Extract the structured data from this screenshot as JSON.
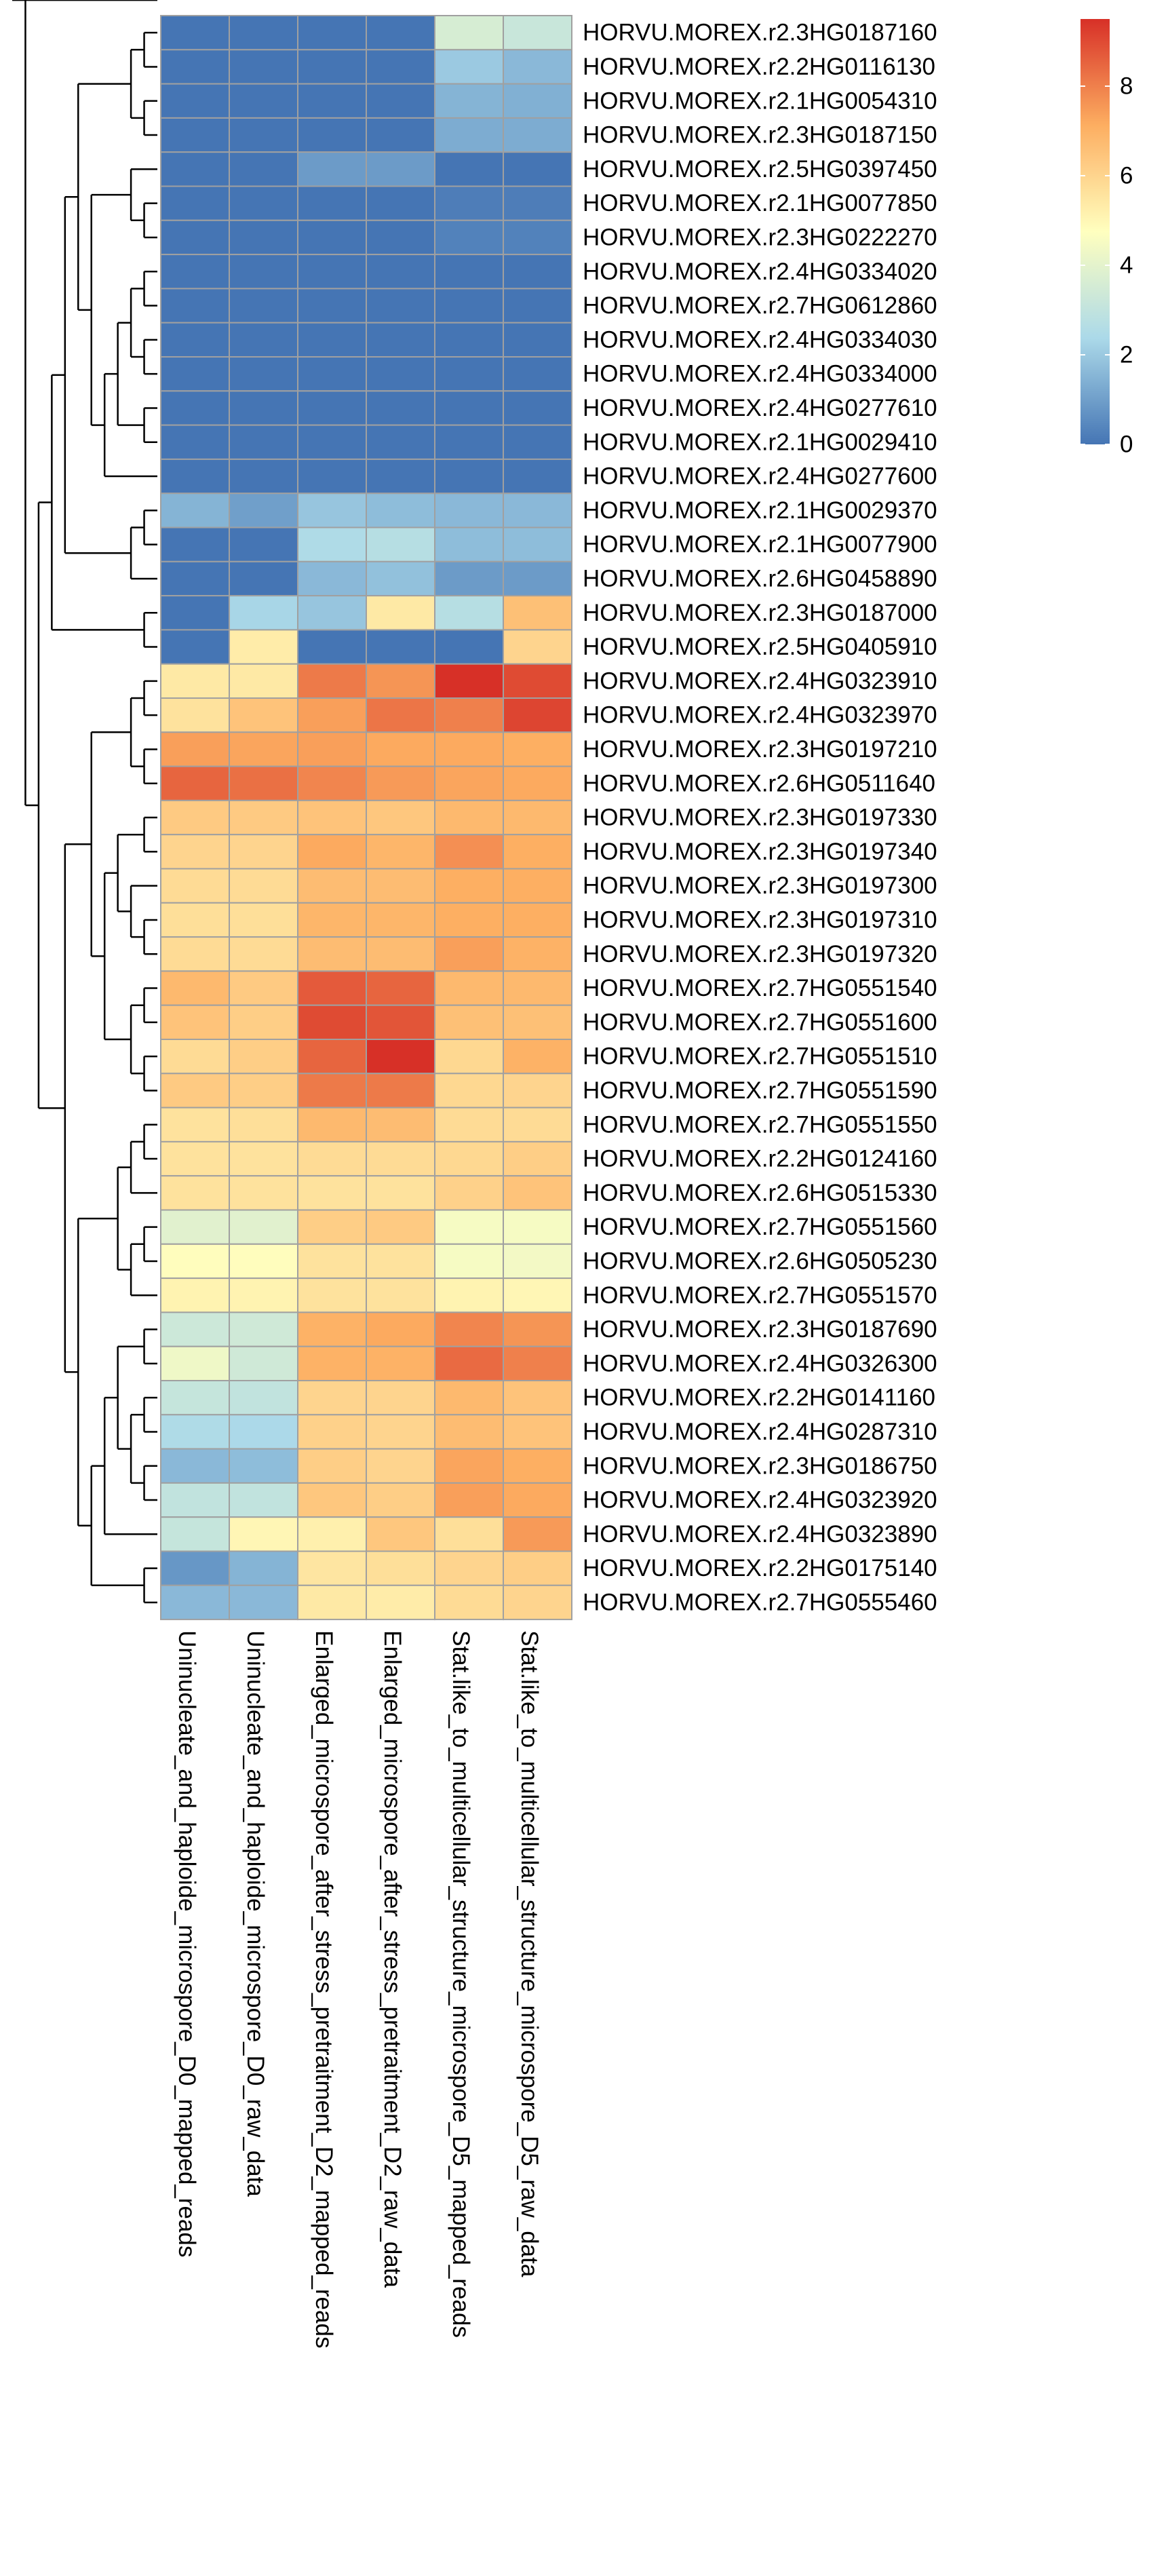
{
  "chart_data": {
    "type": "heatmap",
    "columns": [
      "Uninucleate_and_haploide_microspore_D0_mapped_reads",
      "Uninucleate_and_haploide_microspore_D0_raw_data",
      "Enlarged_microspore_after_stress_pretraitment_D2_mapped_reads",
      "Enlarged_microspore_after_stress_pretraitment_D2_raw_data",
      "Stat.like_to_multicellular_structure_microspore_D5_mapped_reads",
      "Stat.like_to_multicellular_structure_microspore_D5_raw_data"
    ],
    "rows": [
      "HORVU.MOREX.r2.3HG0187160",
      "HORVU.MOREX.r2.2HG0116130",
      "HORVU.MOREX.r2.1HG0054310",
      "HORVU.MOREX.r2.3HG0187150",
      "HORVU.MOREX.r2.5HG0397450",
      "HORVU.MOREX.r2.1HG0077850",
      "HORVU.MOREX.r2.3HG0222270",
      "HORVU.MOREX.r2.4HG0334020",
      "HORVU.MOREX.r2.7HG0612860",
      "HORVU.MOREX.r2.4HG0334030",
      "HORVU.MOREX.r2.4HG0334000",
      "HORVU.MOREX.r2.4HG0277610",
      "HORVU.MOREX.r2.1HG0029410",
      "HORVU.MOREX.r2.4HG0277600",
      "HORVU.MOREX.r2.1HG0029370",
      "HORVU.MOREX.r2.1HG0077900",
      "HORVU.MOREX.r2.6HG0458890",
      "HORVU.MOREX.r2.3HG0187000",
      "HORVU.MOREX.r2.5HG0405910",
      "HORVU.MOREX.r2.4HG0323910",
      "HORVU.MOREX.r2.4HG0323970",
      "HORVU.MOREX.r2.3HG0197210",
      "HORVU.MOREX.r2.6HG0511640",
      "HORVU.MOREX.r2.3HG0197330",
      "HORVU.MOREX.r2.3HG0197340",
      "HORVU.MOREX.r2.3HG0197300",
      "HORVU.MOREX.r2.3HG0197310",
      "HORVU.MOREX.r2.3HG0197320",
      "HORVU.MOREX.r2.7HG0551540",
      "HORVU.MOREX.r2.7HG0551600",
      "HORVU.MOREX.r2.7HG0551510",
      "HORVU.MOREX.r2.7HG0551590",
      "HORVU.MOREX.r2.7HG0551550",
      "HORVU.MOREX.r2.2HG0124160",
      "HORVU.MOREX.r2.6HG0515330",
      "HORVU.MOREX.r2.7HG0551560",
      "HORVU.MOREX.r2.6HG0505230",
      "HORVU.MOREX.r2.7HG0551570",
      "HORVU.MOREX.r2.3HG0187690",
      "HORVU.MOREX.r2.4HG0326300",
      "HORVU.MOREX.r2.2HG0141160",
      "HORVU.MOREX.r2.4HG0287310",
      "HORVU.MOREX.r2.3HG0186750",
      "HORVU.MOREX.r2.4HG0323920",
      "HORVU.MOREX.r2.4HG0323890",
      "HORVU.MOREX.r2.2HG0175140",
      "HORVU.MOREX.r2.7HG0555460"
    ],
    "values": [
      [
        0,
        0,
        0,
        0,
        3.6,
        3.2
      ],
      [
        0,
        0,
        0,
        0,
        2.0,
        1.6
      ],
      [
        0,
        0,
        0,
        0,
        1.5,
        1.4
      ],
      [
        0,
        0,
        0,
        0,
        1.3,
        1.3
      ],
      [
        0,
        0,
        0.9,
        0.9,
        0,
        0
      ],
      [
        0,
        0,
        0,
        0,
        0.2,
        0.2
      ],
      [
        0,
        0,
        0,
        0,
        0.3,
        0.3
      ],
      [
        0,
        0,
        0,
        0,
        0,
        0
      ],
      [
        0,
        0,
        0,
        0,
        0,
        0
      ],
      [
        0,
        0,
        0,
        0,
        0,
        0
      ],
      [
        0,
        0,
        0,
        0,
        0,
        0
      ],
      [
        0,
        0,
        0,
        0,
        0,
        0
      ],
      [
        0,
        0,
        0,
        0,
        0,
        0
      ],
      [
        0,
        0,
        0,
        0,
        0,
        0
      ],
      [
        1.5,
        1.0,
        1.9,
        1.7,
        1.6,
        1.6
      ],
      [
        0,
        0,
        2.5,
        2.7,
        1.7,
        1.7
      ],
      [
        0,
        0,
        1.6,
        1.8,
        0.9,
        0.9
      ],
      [
        0,
        2.3,
        1.9,
        5.4,
        2.7,
        6.6
      ],
      [
        0,
        5.3,
        0,
        0,
        0,
        6.0
      ],
      [
        5.4,
        5.4,
        8.1,
        7.6,
        9.5,
        9.0
      ],
      [
        5.6,
        6.5,
        7.4,
        8.2,
        8.0,
        9.1
      ],
      [
        7.4,
        7.3,
        7.4,
        7.2,
        7.2,
        7.1
      ],
      [
        8.5,
        8.3,
        7.9,
        7.5,
        7.3,
        7.2
      ],
      [
        6.3,
        6.3,
        6.5,
        6.4,
        6.8,
        6.8
      ],
      [
        6.0,
        6.0,
        7.2,
        6.9,
        7.7,
        7.1
      ],
      [
        5.8,
        5.8,
        6.7,
        6.7,
        7.1,
        7.1
      ],
      [
        5.7,
        5.7,
        6.9,
        6.9,
        7.1,
        7.1
      ],
      [
        5.8,
        5.8,
        6.7,
        6.7,
        7.4,
        7.0
      ],
      [
        6.8,
        6.3,
        8.7,
        8.5,
        6.8,
        6.8
      ],
      [
        6.5,
        6.2,
        9.0,
        8.8,
        6.6,
        6.6
      ],
      [
        5.8,
        6.2,
        8.5,
        9.6,
        5.9,
        7.0
      ],
      [
        6.3,
        6.2,
        8.1,
        8.1,
        5.9,
        6.0
      ],
      [
        5.6,
        5.7,
        6.8,
        6.7,
        5.8,
        5.8
      ],
      [
        5.6,
        5.6,
        5.8,
        5.8,
        5.9,
        6.2
      ],
      [
        5.6,
        5.6,
        5.6,
        5.6,
        6.1,
        6.5
      ],
      [
        3.9,
        3.9,
        6.2,
        6.3,
        4.5,
        4.5
      ],
      [
        4.8,
        4.8,
        5.6,
        5.6,
        4.5,
        4.4
      ],
      [
        5.1,
        5.1,
        5.6,
        5.6,
        5.1,
        5.0
      ],
      [
        3.3,
        3.4,
        7.0,
        7.2,
        7.9,
        7.6
      ],
      [
        4.3,
        3.4,
        7.0,
        7.0,
        8.4,
        8.0
      ],
      [
        3.1,
        3.0,
        6.0,
        6.0,
        6.8,
        6.5
      ],
      [
        2.5,
        2.4,
        6.1,
        6.0,
        6.7,
        6.5
      ],
      [
        1.6,
        1.7,
        6.2,
        6.0,
        7.3,
        7.1
      ],
      [
        3.0,
        3.0,
        6.4,
        6.2,
        7.4,
        7.2
      ],
      [
        3.1,
        5.0,
        5.2,
        6.4,
        5.7,
        7.5
      ],
      [
        0.8,
        1.5,
        5.5,
        5.7,
        6.0,
        6.2
      ],
      [
        1.6,
        1.6,
        5.4,
        5.3,
        5.8,
        6.0
      ]
    ],
    "legend": {
      "ticks": [
        0,
        2,
        4,
        6,
        8
      ],
      "min": 0,
      "max": 9.5,
      "placement": "top-right"
    },
    "colors": {
      "low": "#4575b4",
      "mid_low": "#abd9e9",
      "mid": "#ffffbf",
      "mid_high": "#fdae61",
      "high": "#d73027",
      "grid": "#a0a0a0",
      "dendrogram": "#000000"
    },
    "row_dendrogram": "((((((((0,1),(2,3)),((4,(5,6)),((((7,8),(9,10)),(11,12)),13))),((14,15),16)),(17,18)),((((19,20),(21,22)),(((23,24),(25,(26,27))),((28,29),(30,31)))),((((32,33),34),((35,36),37)),((((38,39),((40,41),(42,43))),44),(45,46))))))",
    "col_dendrogram": ""
  }
}
